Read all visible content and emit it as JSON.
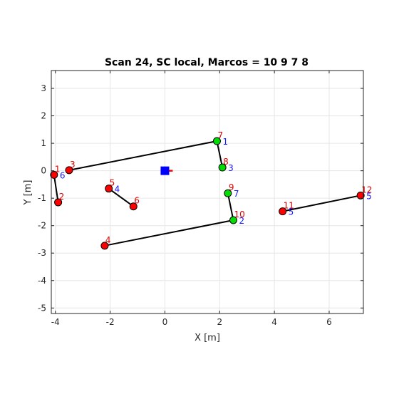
{
  "chart_data": {
    "type": "scatter",
    "title": "Scan 24, SC local, Marcos =  10 9 7 8",
    "xlabel": "X [m]",
    "ylabel": "Y [m]",
    "xlim": [
      -4.15,
      7.25
    ],
    "ylim": [
      -5.2,
      3.65
    ],
    "xticks": [
      "-4",
      "-2",
      "0",
      "2",
      "4",
      "6"
    ],
    "xtick_values": [
      -4,
      -2,
      0,
      2,
      4,
      6
    ],
    "yticks": [
      "3",
      "2",
      "1",
      "0",
      "-1",
      "-2",
      "-3",
      "-4",
      "-5"
    ],
    "ytick_values": [
      3,
      2,
      1,
      0,
      -1,
      -2,
      -3,
      -4,
      -5
    ],
    "grid": true,
    "colors": {
      "marker_red": "#ff0000",
      "marker_green": "#00dd00",
      "robot_blue": "#0000ff",
      "robot_heading_red": "#ff0000",
      "label_red": "#e00000",
      "label_blue": "#1a1aff",
      "segment": "#000000"
    },
    "robot": {
      "x": 0,
      "y": 0
    },
    "segments": [
      {
        "from": [
          -3.5,
          0.02
        ],
        "to": [
          1.9,
          1.08
        ]
      },
      {
        "from": [
          1.9,
          1.08
        ],
        "to": [
          2.1,
          0.12
        ]
      },
      {
        "from": [
          -4.05,
          -0.15
        ],
        "to": [
          -3.9,
          -1.15
        ]
      },
      {
        "from": [
          -2.05,
          -0.65
        ],
        "to": [
          -1.15,
          -1.3
        ]
      },
      {
        "from": [
          -2.2,
          -2.73
        ],
        "to": [
          2.5,
          -1.8
        ]
      },
      {
        "from": [
          2.3,
          -0.82
        ],
        "to": [
          2.5,
          -1.8
        ]
      },
      {
        "from": [
          4.3,
          -1.48
        ],
        "to": [
          7.15,
          -0.9
        ]
      }
    ],
    "points": [
      {
        "x": -4.05,
        "y": -0.15,
        "color": "red",
        "label_red": "1",
        "label_blue": "6"
      },
      {
        "x": -3.9,
        "y": -1.15,
        "color": "red",
        "label_red": "2",
        "label_blue": ""
      },
      {
        "x": -3.5,
        "y": 0.02,
        "color": "red",
        "label_red": "3",
        "label_blue": ""
      },
      {
        "x": -2.2,
        "y": -2.73,
        "color": "red",
        "label_red": "4",
        "label_blue": ""
      },
      {
        "x": -2.05,
        "y": -0.65,
        "color": "red",
        "label_red": "5",
        "label_blue": "4"
      },
      {
        "x": -1.15,
        "y": -1.3,
        "color": "red",
        "label_red": "6",
        "label_blue": ""
      },
      {
        "x": 1.9,
        "y": 1.08,
        "color": "green",
        "label_red": "7",
        "label_blue": "1"
      },
      {
        "x": 2.1,
        "y": 0.12,
        "color": "green",
        "label_red": "8",
        "label_blue": "3"
      },
      {
        "x": 2.3,
        "y": -0.82,
        "color": "green",
        "label_red": "9",
        "label_blue": "7"
      },
      {
        "x": 2.5,
        "y": -1.8,
        "color": "green",
        "label_red": "10",
        "label_blue": "2"
      },
      {
        "x": 4.3,
        "y": -1.48,
        "color": "red",
        "label_red": "11",
        "label_blue": "5"
      },
      {
        "x": 7.15,
        "y": -0.9,
        "color": "red",
        "label_red": "12",
        "label_blue": "5"
      }
    ]
  }
}
